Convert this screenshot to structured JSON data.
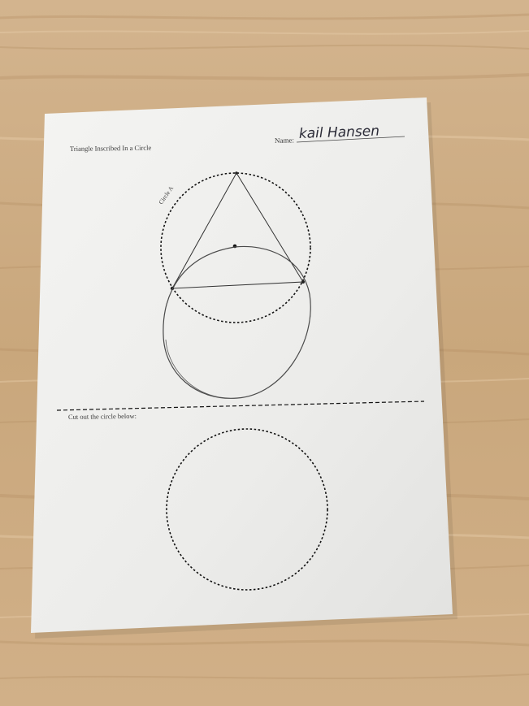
{
  "worksheet": {
    "title": "Triangle Inscribed In a Circle",
    "name_label": "Name:",
    "name_value": "kail Hansen",
    "circle_label": "Circle A",
    "cut_instruction": "Cut out the circle below:"
  }
}
